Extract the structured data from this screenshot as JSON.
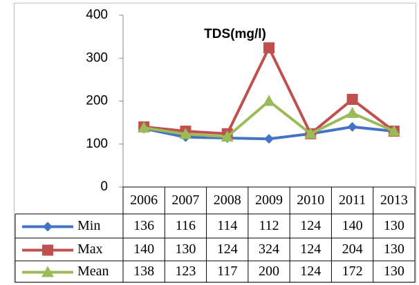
{
  "chart_data": {
    "type": "line",
    "title": "TDS(mg/l)",
    "categories": [
      "2006",
      "2007",
      "2008",
      "2009",
      "2010",
      "2011",
      "2013"
    ],
    "series": [
      {
        "name": "Min",
        "color": "#4472c4",
        "marker": "diamond",
        "values": [
          136,
          116,
          114,
          112,
          124,
          140,
          130
        ]
      },
      {
        "name": "Max",
        "color": "#c0504d",
        "marker": "square",
        "values": [
          140,
          130,
          124,
          324,
          124,
          204,
          130
        ]
      },
      {
        "name": "Mean",
        "color": "#9bbb59",
        "marker": "triangle",
        "values": [
          138,
          123,
          117,
          200,
          124,
          172,
          130
        ]
      }
    ],
    "ylim": [
      0,
      400
    ],
    "yticks": [
      0,
      100,
      200,
      300,
      400
    ],
    "grid": false,
    "data_table": true
  }
}
